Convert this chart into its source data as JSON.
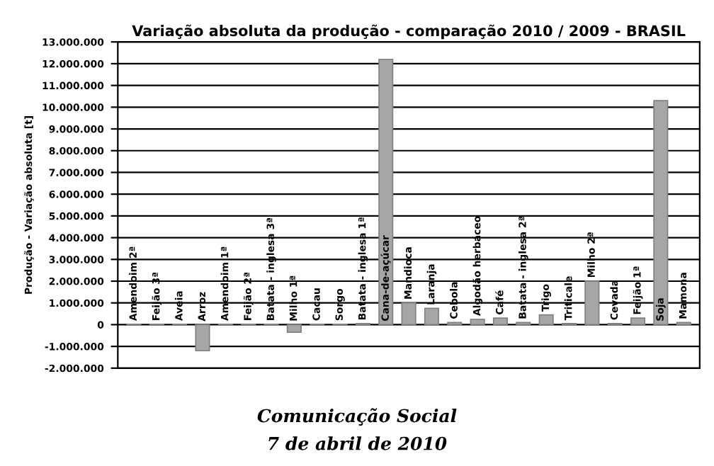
{
  "chart_data": {
    "type": "bar",
    "title": "Variação absoluta da produção - comparação 2010 / 2009 - BRASIL",
    "ylabel": "Produção - Variação absoluta [t]",
    "categories": [
      "Amendoim 2ª",
      "Feijão 3ª",
      "Aveia",
      "Arroz",
      "Amendoim 1ª",
      "Feijão 2ª",
      "Batata - inglesa 3ª",
      "Milho 1ª",
      "Cacau",
      "Sorgo",
      "Batata - inglesa 1ª",
      "Cana-de-açúcar",
      "Mandioca",
      "Laranja",
      "Cebola",
      "Algodão herbáceo",
      "Café",
      "Batata - inglesa 2ª",
      "Trigo",
      "Triticale",
      "Milho 2ª",
      "Cevada",
      "Feijão 1ª",
      "Soja",
      "Mamona"
    ],
    "values": [
      20000,
      20000,
      20000,
      -1200000,
      20000,
      20000,
      20000,
      -350000,
      20000,
      20000,
      50000,
      12200000,
      1000000,
      750000,
      100000,
      250000,
      300000,
      100000,
      450000,
      50000,
      2000000,
      50000,
      300000,
      10300000,
      100000
    ],
    "color": "#a6a6a6",
    "ylim": [
      -2000000,
      13000000
    ],
    "yticks": [
      {
        "value": -2000000,
        "label": "-2.000.000"
      },
      {
        "value": -1000000,
        "label": "-1.000.000"
      },
      {
        "value": 0,
        "label": "0"
      },
      {
        "value": 1000000,
        "label": "1.000.000"
      },
      {
        "value": 2000000,
        "label": "2.000.000"
      },
      {
        "value": 3000000,
        "label": "3.000.000"
      },
      {
        "value": 4000000,
        "label": "4.000.000"
      },
      {
        "value": 5000000,
        "label": "5.000.000"
      },
      {
        "value": 6000000,
        "label": "6.000.000"
      },
      {
        "value": 7000000,
        "label": "7.000.000"
      },
      {
        "value": 8000000,
        "label": "8.000.000"
      },
      {
        "value": 9000000,
        "label": "9.000.000"
      },
      {
        "value": 10000000,
        "label": "10.000.000"
      },
      {
        "value": 11000000,
        "label": "11.000.000"
      },
      {
        "value": 12000000,
        "label": "12.000.000"
      },
      {
        "value": 13000000,
        "label": "13.000.000"
      }
    ],
    "grid": "y",
    "annotations": [
      "Comunicação Social",
      "7 de abril de 2010"
    ]
  }
}
